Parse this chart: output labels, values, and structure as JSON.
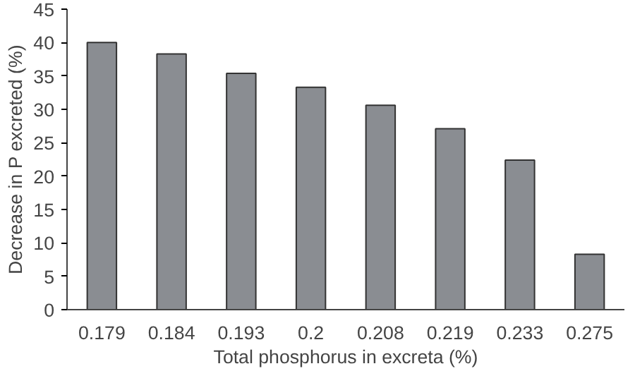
{
  "chart_data": {
    "type": "bar",
    "xlabel": "Total phosphorus in excreta (%)",
    "ylabel": "Decrease in P excreted (%)",
    "categories": [
      "0.179",
      "0.184",
      "0.193",
      "0.2",
      "0.208",
      "0.219",
      "0.233",
      "0.275"
    ],
    "values": [
      40.0,
      38.3,
      35.4,
      33.3,
      30.6,
      27.1,
      22.4,
      8.3
    ],
    "color": "#8a8d92",
    "ylim": [
      0,
      45
    ],
    "yticks": [
      0,
      5,
      10,
      15,
      20,
      25,
      30,
      35,
      40,
      45
    ],
    "grid": false
  }
}
